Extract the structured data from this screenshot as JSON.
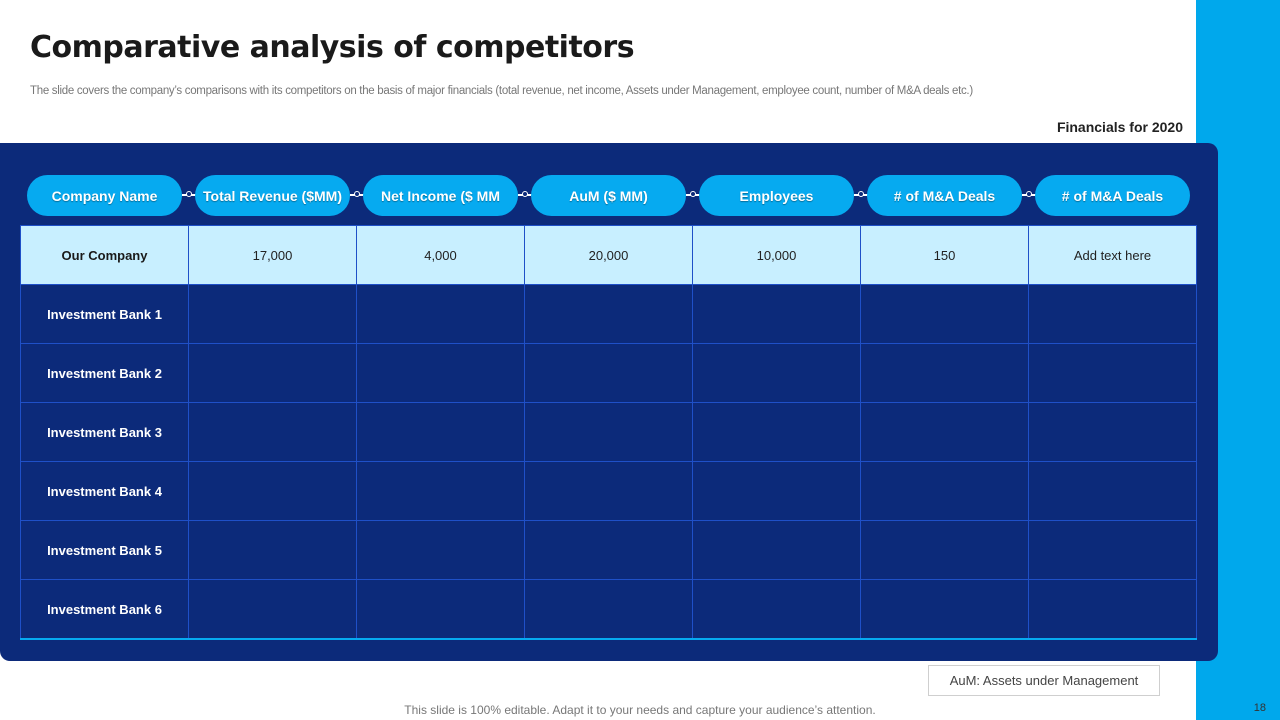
{
  "slide": {
    "title": "Comparative analysis of competitors",
    "subtitle": "The slide covers the company’s comparisons with its competitors on the basis of major financials (total revenue, net income, Assets under Management, employee count, number of M&A  deals etc.)",
    "financials_label": "Financials for 2020",
    "page_number": "18",
    "footer": "This slide is 100% editable. Adapt it to your needs and capture your audience’s attention.",
    "legend": "AuM: Assets under Management"
  },
  "colors": {
    "accent": "#00a8ec",
    "panel": "#0c2a7a",
    "pill": "#06aaf0",
    "highlight_row": "#c8efff"
  },
  "table": {
    "headers": [
      "Company Name",
      "Total Revenue ($MM)",
      "Net Income ($ MM",
      "AuM ($ MM)",
      "Employees",
      "# of M&A Deals",
      "# of M&A Deals"
    ],
    "rows": [
      {
        "name": "Our Company",
        "cells": [
          "17,000",
          "4,000",
          "20,000",
          "10,000",
          "150",
          "Add text here"
        ]
      },
      {
        "name": "Investment Bank 1",
        "cells": [
          "",
          "",
          "",
          "",
          "",
          ""
        ]
      },
      {
        "name": "Investment Bank 2",
        "cells": [
          "",
          "",
          "",
          "",
          "",
          ""
        ]
      },
      {
        "name": "Investment Bank 3",
        "cells": [
          "",
          "",
          "",
          "",
          "",
          ""
        ]
      },
      {
        "name": "Investment Bank 4",
        "cells": [
          "",
          "",
          "",
          "",
          "",
          ""
        ]
      },
      {
        "name": "Investment Bank 5",
        "cells": [
          "",
          "",
          "",
          "",
          "",
          ""
        ]
      },
      {
        "name": "Investment Bank 6",
        "cells": [
          "",
          "",
          "",
          "",
          "",
          ""
        ]
      }
    ]
  }
}
